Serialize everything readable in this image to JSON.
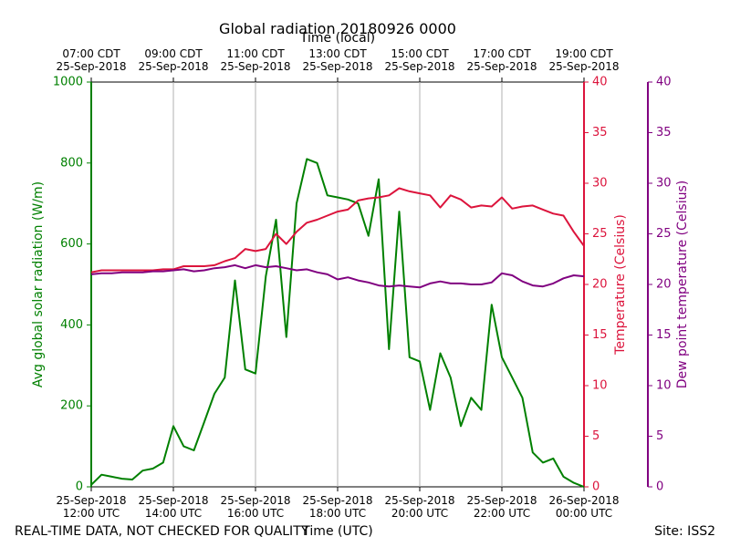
{
  "chart_data": {
    "type": "line",
    "title": "Global radiation 20180926 0000",
    "x_top_label": "Time (local)",
    "x_label": "Time (UTC)",
    "y_label": "Avg global solar radiation (W/m)",
    "y2_label": "Temperature (Celsius)",
    "y3_label": "Dew point temperature (Celsius)",
    "footer_left": "REAL-TIME DATA, NOT CHECKED FOR QUALITY",
    "footer_right": "Site: ISS2",
    "grid": true,
    "x": [
      "2018-09-25T12:00",
      "2018-09-25T12:15",
      "2018-09-25T12:30",
      "2018-09-25T12:45",
      "2018-09-25T13:00",
      "2018-09-25T13:15",
      "2018-09-25T13:30",
      "2018-09-25T13:45",
      "2018-09-25T14:00",
      "2018-09-25T14:15",
      "2018-09-25T14:30",
      "2018-09-25T14:45",
      "2018-09-25T15:00",
      "2018-09-25T15:15",
      "2018-09-25T15:30",
      "2018-09-25T15:45",
      "2018-09-25T16:00",
      "2018-09-25T16:15",
      "2018-09-25T16:30",
      "2018-09-25T16:45",
      "2018-09-25T17:00",
      "2018-09-25T17:15",
      "2018-09-25T17:30",
      "2018-09-25T17:45",
      "2018-09-25T18:00",
      "2018-09-25T18:15",
      "2018-09-25T18:30",
      "2018-09-25T18:45",
      "2018-09-25T19:00",
      "2018-09-25T19:15",
      "2018-09-25T19:30",
      "2018-09-25T19:45",
      "2018-09-25T20:00",
      "2018-09-25T20:15",
      "2018-09-25T20:30",
      "2018-09-25T20:45",
      "2018-09-25T21:00",
      "2018-09-25T21:15",
      "2018-09-25T21:30",
      "2018-09-25T21:45",
      "2018-09-25T22:00",
      "2018-09-25T22:15",
      "2018-09-25T22:30",
      "2018-09-25T22:45",
      "2018-09-25T23:00",
      "2018-09-25T23:15",
      "2018-09-25T23:30",
      "2018-09-25T23:45",
      "2018-09-26T00:00"
    ],
    "xlim": [
      "2018-09-25T12:00",
      "2018-09-26T00:00"
    ],
    "xticks": [
      {
        "value": "2018-09-25T12:00",
        "label": "25-Sep-2018\n12:00 UTC"
      },
      {
        "value": "2018-09-25T14:00",
        "label": "25-Sep-2018\n14:00 UTC"
      },
      {
        "value": "2018-09-25T16:00",
        "label": "25-Sep-2018\n16:00 UTC"
      },
      {
        "value": "2018-09-25T18:00",
        "label": "25-Sep-2018\n18:00 UTC"
      },
      {
        "value": "2018-09-25T20:00",
        "label": "25-Sep-2018\n20:00 UTC"
      },
      {
        "value": "2018-09-25T22:00",
        "label": "25-Sep-2018\n22:00 UTC"
      },
      {
        "value": "2018-09-26T00:00",
        "label": "26-Sep-2018\n00:00 UTC"
      }
    ],
    "x2ticks": [
      {
        "value": "2018-09-25T12:00",
        "label": "07:00 CDT\n25-Sep-2018"
      },
      {
        "value": "2018-09-25T14:00",
        "label": "09:00 CDT\n25-Sep-2018"
      },
      {
        "value": "2018-09-25T16:00",
        "label": "11:00 CDT\n25-Sep-2018"
      },
      {
        "value": "2018-09-25T18:00",
        "label": "13:00 CDT\n25-Sep-2018"
      },
      {
        "value": "2018-09-25T20:00",
        "label": "15:00 CDT\n25-Sep-2018"
      },
      {
        "value": "2018-09-25T22:00",
        "label": "17:00 CDT\n25-Sep-2018"
      },
      {
        "value": "2018-09-26T00:00",
        "label": "19:00 CDT\n25-Sep-2018"
      }
    ],
    "ylim": [
      0,
      1000
    ],
    "yticks": [
      0,
      200,
      400,
      600,
      800,
      1000
    ],
    "y2lim": [
      0,
      40
    ],
    "y2ticks": [
      0,
      5,
      10,
      15,
      20,
      25,
      30,
      35,
      40
    ],
    "y3lim": [
      0,
      40
    ],
    "y3ticks": [
      0,
      5,
      10,
      15,
      20,
      25,
      30,
      35,
      40
    ],
    "series": [
      {
        "name": "Avg global solar radiation",
        "color": "#008000",
        "axis": "y",
        "values": [
          5,
          30,
          25,
          20,
          18,
          40,
          45,
          60,
          150,
          100,
          90,
          160,
          230,
          270,
          510,
          290,
          280,
          520,
          660,
          370,
          700,
          810,
          800,
          720,
          715,
          710,
          700,
          620,
          760,
          340,
          680,
          320,
          310,
          190,
          330,
          270,
          150,
          220,
          190,
          450,
          320,
          270,
          220,
          85,
          60,
          70,
          25,
          10,
          0
        ]
      },
      {
        "name": "Temperature",
        "color": "#dc143c",
        "axis": "y2",
        "values": [
          21.2,
          21.4,
          21.4,
          21.4,
          21.4,
          21.4,
          21.4,
          21.5,
          21.5,
          21.8,
          21.8,
          21.8,
          21.9,
          22.3,
          22.6,
          23.5,
          23.3,
          23.5,
          25,
          24,
          25.2,
          26.1,
          26.4,
          26.8,
          27.2,
          27.4,
          28.3,
          28.5,
          28.6,
          28.8,
          29.5,
          29.2,
          29,
          28.8,
          27.6,
          28.8,
          28.4,
          27.6,
          27.8,
          27.7,
          28.6,
          27.5,
          27.7,
          27.8,
          27.4,
          27,
          26.8,
          25.2,
          23.8
        ]
      },
      {
        "name": "Dew point temperature",
        "color": "#800080",
        "axis": "y3",
        "values": [
          21.0,
          21.1,
          21.1,
          21.2,
          21.2,
          21.2,
          21.3,
          21.3,
          21.4,
          21.5,
          21.3,
          21.4,
          21.6,
          21.7,
          21.9,
          21.6,
          21.9,
          21.7,
          21.8,
          21.6,
          21.4,
          21.5,
          21.2,
          21.0,
          20.5,
          20.7,
          20.4,
          20.2,
          19.9,
          19.8,
          19.9,
          19.8,
          19.7,
          20.1,
          20.3,
          20.1,
          20.1,
          20.0,
          20.0,
          20.2,
          21.1,
          20.9,
          20.3,
          19.9,
          19.8,
          20.1,
          20.6,
          20.9,
          20.8
        ]
      }
    ]
  }
}
